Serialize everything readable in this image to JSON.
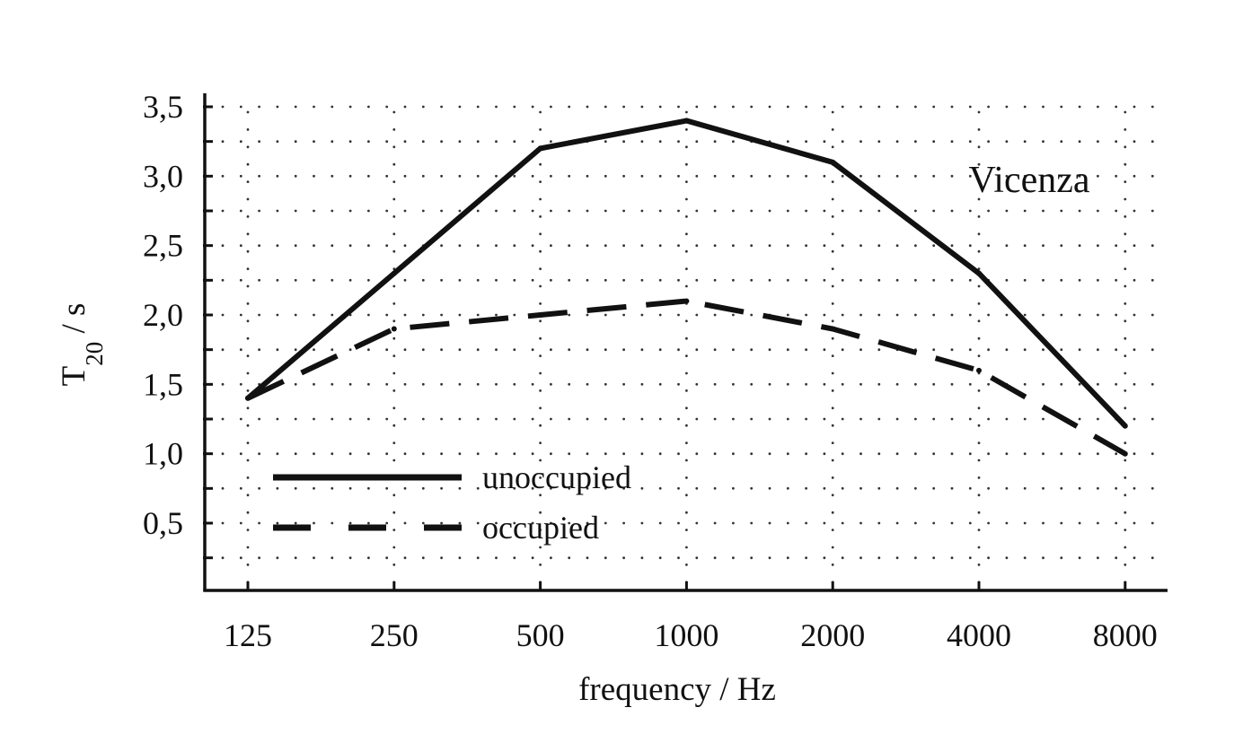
{
  "chart_data": {
    "type": "line",
    "x_categories": [
      "125",
      "250",
      "500",
      "1000",
      "2000",
      "4000",
      "8000"
    ],
    "xlabel": "frequency / Hz",
    "ylabel": {
      "main": "T",
      "subscript": "20",
      "unit": " / s"
    },
    "ylim": [
      0.0,
      3.6
    ],
    "y_ticks": [
      0.5,
      1.0,
      1.5,
      2.0,
      2.5,
      3.0,
      3.5
    ],
    "y_tick_labels": [
      "0,5",
      "1,0",
      "1,5",
      "2,0",
      "2,5",
      "3,0",
      "3,5"
    ],
    "grid": "dotted",
    "annotation": "Vicenza",
    "legend_position": "bottom-left",
    "series": [
      {
        "name": "unoccupied",
        "style": "solid",
        "color": "#111111",
        "values": [
          1.4,
          2.3,
          3.2,
          3.4,
          3.1,
          2.3,
          1.2
        ]
      },
      {
        "name": "occupied",
        "style": "dashed",
        "color": "#111111",
        "values": [
          1.4,
          1.9,
          2.0,
          2.1,
          1.9,
          1.6,
          1.0
        ]
      }
    ]
  }
}
